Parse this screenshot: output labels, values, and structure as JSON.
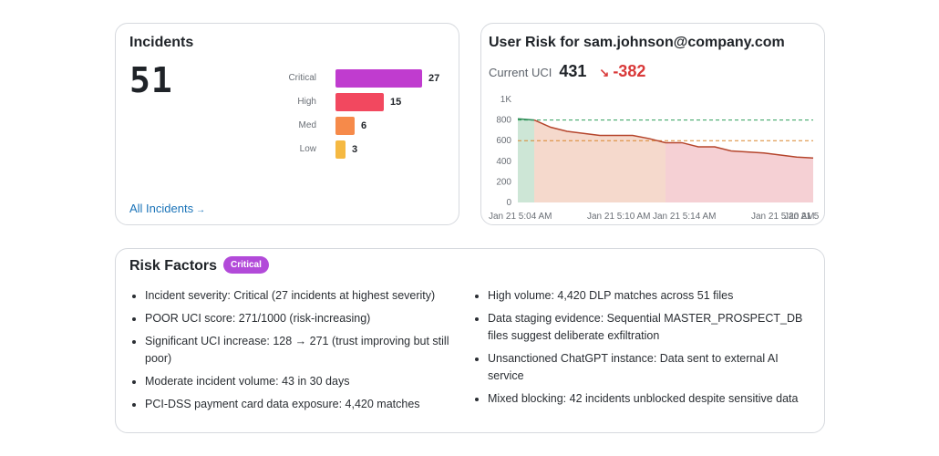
{
  "incidents": {
    "title": "Incidents",
    "total": "51",
    "bars": [
      {
        "label": "Critical",
        "value": 27,
        "color": "#c03ccf"
      },
      {
        "label": "High",
        "value": 15,
        "color": "#f2485f"
      },
      {
        "label": "Med",
        "value": 6,
        "color": "#f68a4a"
      },
      {
        "label": "Low",
        "value": 3,
        "color": "#f5b942"
      }
    ],
    "link_label": "All Incidents",
    "link_icon": "arrow-right-icon"
  },
  "user_risk": {
    "title": "User Risk for sam.johnson@company.com",
    "current_label": "Current UCI",
    "current_value": "431",
    "delta": "-382",
    "delta_icon": "trend-down-icon",
    "delta_color": "#d93a3a"
  },
  "chart_data": {
    "type": "area",
    "x": [
      "5:04",
      "5:05",
      "5:06",
      "5:07",
      "5:08",
      "5:09",
      "5:10",
      "5:11",
      "5:12",
      "5:13",
      "5:14",
      "5:15",
      "5:16",
      "5:17",
      "5:18",
      "5:19",
      "5:20",
      "5:21",
      "5:22"
    ],
    "values": [
      812,
      800,
      730,
      690,
      670,
      650,
      650,
      650,
      620,
      580,
      580,
      540,
      540,
      500,
      490,
      480,
      460,
      440,
      431
    ],
    "ylim": [
      0,
      1000
    ],
    "yticks": [
      "0",
      "200",
      "400",
      "600",
      "800",
      "1K"
    ],
    "xtick_labels": [
      "Jan 21 5:04 AM",
      "Jan 21 5:10 AM",
      "Jan 21 5:14 AM",
      "Jan 21 5:20 AM",
      "Jan 21 5"
    ],
    "thresholds": [
      {
        "value": 800,
        "color": "#2e9e5b"
      },
      {
        "value": 600,
        "color": "#d9862d"
      }
    ],
    "zones": [
      {
        "color": "#cde6d6"
      },
      {
        "color": "#f5d9cc"
      },
      {
        "color": "#f5d0d4"
      }
    ],
    "line_colors": [
      "#2e8b57",
      "#b5452c"
    ],
    "grid": false
  },
  "risk_factors": {
    "title": "Risk Factors",
    "badge": "Critical",
    "badge_color": "#b24ad9",
    "left": [
      "Incident severity: Critical (27 incidents at highest severity)",
      "POOR UCI score: 271/1000 (risk-increasing)",
      "Significant UCI increase: 128 → 271 (trust improving but still poor)",
      "Moderate incident volume: 43 in 30 days",
      "PCI-DSS payment card data exposure: 4,420 matches"
    ],
    "right": [
      "High volume: 4,420 DLP matches across 51 files",
      "Data staging evidence: Sequential MASTER_PROSPECT_DB files suggest deliberate exfiltration",
      "Unsanctioned ChatGPT instance: Data sent to external AI service",
      "Mixed blocking: 42 incidents unblocked despite sensitive data"
    ]
  }
}
